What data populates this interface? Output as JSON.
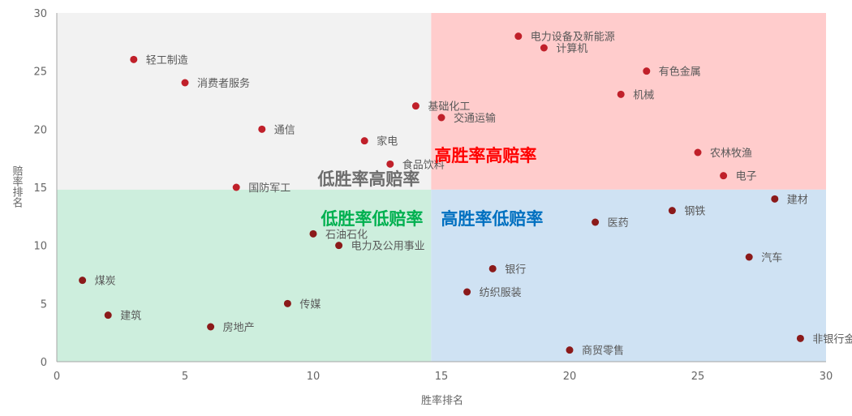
{
  "chart_data": {
    "type": "scatter",
    "xlabel": "胜率排名",
    "ylabel": "赔率排名",
    "xlim": [
      0,
      30
    ],
    "ylim": [
      0,
      30
    ],
    "xticks": [
      0,
      5,
      10,
      15,
      20,
      25,
      30
    ],
    "yticks": [
      0,
      5,
      10,
      15,
      20,
      25,
      30
    ],
    "x_split": 14.6,
    "y_split": 14.8,
    "quadrants": [
      {
        "label": "低胜率高赔率",
        "color": "#6d6d6d",
        "fill": "#f2f2f2"
      },
      {
        "label": "高胜率高赔率",
        "color": "#ff0000",
        "fill": "#ffcccc"
      },
      {
        "label": "低胜率低赔率",
        "color": "#00b050",
        "fill": "#cdeedd"
      },
      {
        "label": "高胜率低赔率",
        "color": "#0070c0",
        "fill": "#cfe2f3"
      }
    ],
    "points": [
      {
        "name": "轻工制造",
        "x": 3,
        "y": 26
      },
      {
        "name": "消费者服务",
        "x": 5,
        "y": 24
      },
      {
        "name": "通信",
        "x": 8,
        "y": 20
      },
      {
        "name": "家电",
        "x": 12,
        "y": 19
      },
      {
        "name": "基础化工",
        "x": 14,
        "y": 22
      },
      {
        "name": "交通运输",
        "x": 15,
        "y": 21
      },
      {
        "name": "食品饮料",
        "x": 13,
        "y": 17
      },
      {
        "name": "国防军工",
        "x": 7,
        "y": 15
      },
      {
        "name": "电力设备及新能源",
        "x": 18,
        "y": 28
      },
      {
        "name": "计算机",
        "x": 19,
        "y": 27
      },
      {
        "name": "有色金属",
        "x": 23,
        "y": 25
      },
      {
        "name": "机械",
        "x": 22,
        "y": 23
      },
      {
        "name": "农林牧渔",
        "x": 25,
        "y": 18
      },
      {
        "name": "电子",
        "x": 26,
        "y": 16
      },
      {
        "name": "石油石化",
        "x": 10,
        "y": 11
      },
      {
        "name": "电力及公用事业",
        "x": 11,
        "y": 10
      },
      {
        "name": "煤炭",
        "x": 1,
        "y": 7
      },
      {
        "name": "建筑",
        "x": 2,
        "y": 4
      },
      {
        "name": "房地产",
        "x": 6,
        "y": 3
      },
      {
        "name": "传媒",
        "x": 9,
        "y": 5
      },
      {
        "name": "建材",
        "x": 28,
        "y": 14
      },
      {
        "name": "钢铁",
        "x": 24,
        "y": 13
      },
      {
        "name": "医药",
        "x": 21,
        "y": 12
      },
      {
        "name": "汽车",
        "x": 27,
        "y": 9
      },
      {
        "name": "银行",
        "x": 17,
        "y": 8
      },
      {
        "name": "纺织服装",
        "x": 16,
        "y": 6
      },
      {
        "name": "非银行金融",
        "x": 29,
        "y": 2
      },
      {
        "name": "商贸零售",
        "x": 20,
        "y": 1
      }
    ],
    "colors": {
      "high_odds_point": "#c0202a",
      "low_odds_point": "#8b1a1a",
      "axis": "#a6a6a6"
    }
  }
}
